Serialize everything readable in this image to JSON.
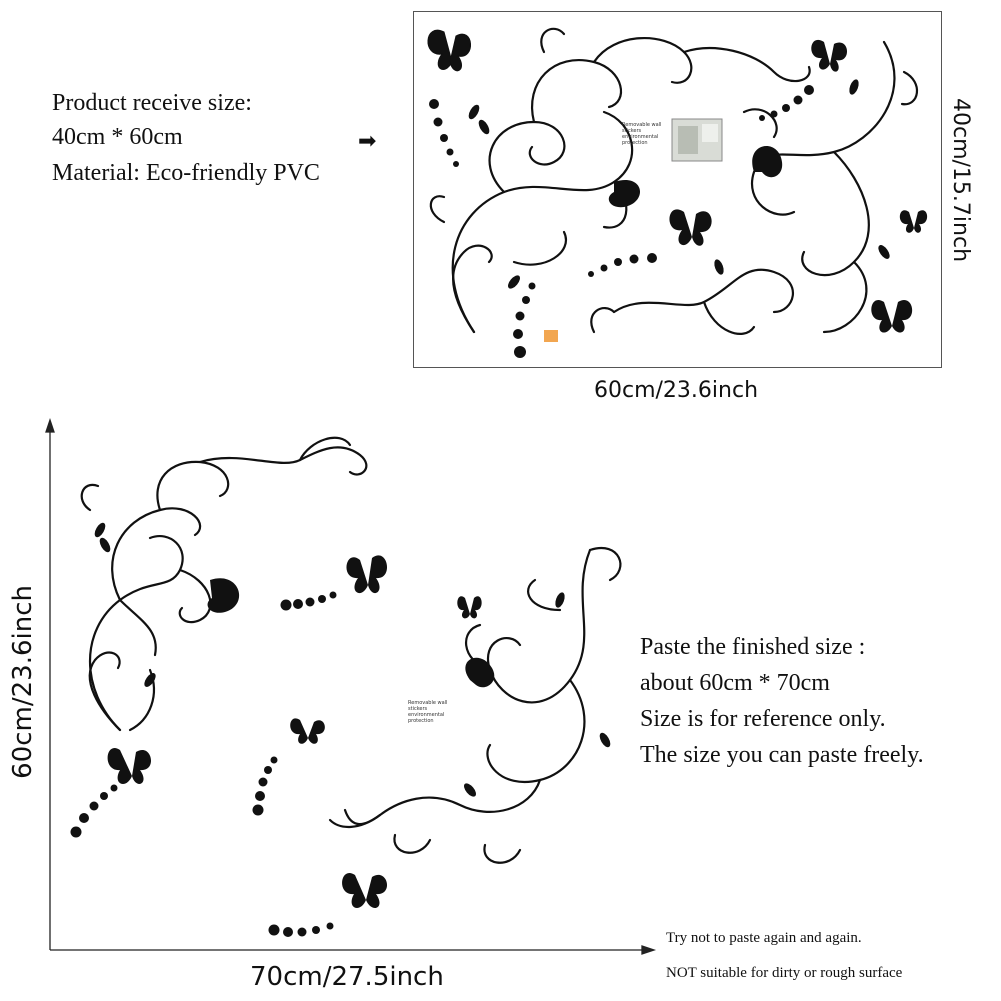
{
  "product_info": {
    "lines": [
      "Product receive size:",
      "40cm * 60cm",
      "Material: Eco-friendly PVC"
    ],
    "arrow": "➡"
  },
  "sheet": {
    "width_label": "60cm/23.6inch",
    "height_label": "40cm/15.7inch",
    "tag_text": "Removable wall stickers environmental protection"
  },
  "finished": {
    "width_label": "70cm/27.5inch",
    "height_label": "60cm/23.6inch",
    "lines": [
      "Paste the finished size :",
      "about 60cm * 70cm",
      "Size is for reference only.",
      "The size you can paste freely."
    ],
    "tag_text": "Removable wall stickers environmental protection"
  },
  "notes": [
    "Try not to paste again and again.",
    "NOT suitable for dirty or rough surface"
  ],
  "icons": {
    "decal": "vine-swirl-icon",
    "butterfly": "butterfly-icon",
    "arrow": "arrow-right-icon"
  }
}
